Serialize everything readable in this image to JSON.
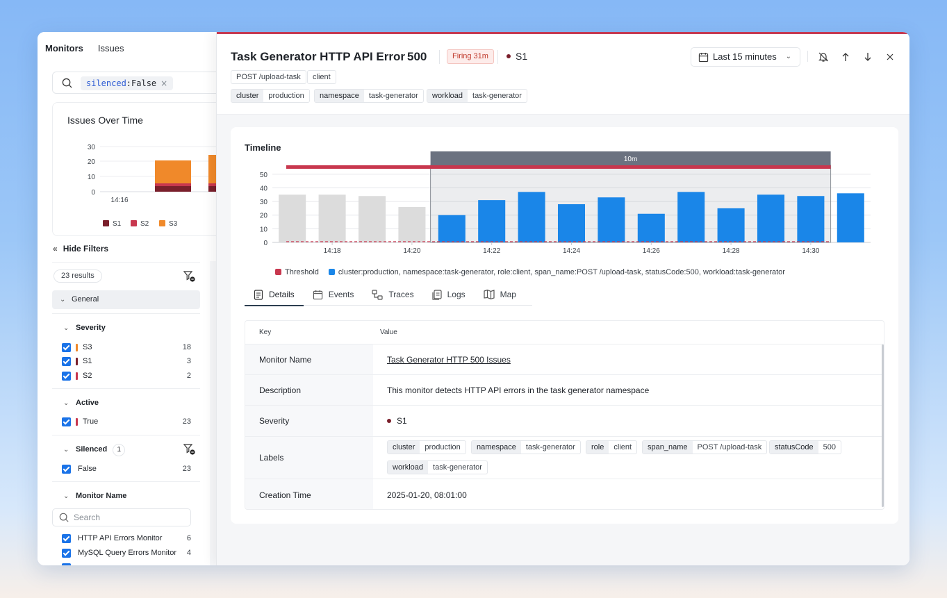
{
  "colors": {
    "s1": "#7a1f2b",
    "s2": "#c8374e",
    "s3": "#f0892a",
    "threshold": "#c8374e",
    "series": "#1a86e8",
    "accent": "#1a73e8"
  },
  "left": {
    "nav": [
      "Monitors",
      "Issues"
    ],
    "search": {
      "chip_key": "silenced",
      "chip_sep": ":",
      "chip_value": "False",
      "chip_close": "×"
    },
    "issues_chart": {
      "title": "Issues Over Time",
      "y_ticks": [
        "30",
        "20",
        "10",
        "0"
      ],
      "x_label": "14:16",
      "legend": [
        "S1",
        "S2",
        "S3"
      ]
    },
    "hide_filters": "Hide Filters",
    "results": "23 results",
    "general": "General",
    "severity": {
      "title": "Severity",
      "items": [
        {
          "label": "S3",
          "count": "18",
          "color": "#f0892a"
        },
        {
          "label": "S1",
          "count": "3",
          "color": "#7a1f2b"
        },
        {
          "label": "S2",
          "count": "2",
          "color": "#c8374e"
        }
      ]
    },
    "active": {
      "title": "Active",
      "items": [
        {
          "label": "True",
          "count": "23"
        }
      ]
    },
    "silenced": {
      "title": "Silenced",
      "badge": "1",
      "items": [
        {
          "label": "False",
          "count": "23"
        }
      ]
    },
    "monitor_name": {
      "title": "Monitor Name",
      "placeholder": "Search",
      "items": [
        {
          "label": "HTTP API Errors Monitor",
          "count": "6"
        },
        {
          "label": "MySQL Query Errors Monitor",
          "count": "4"
        }
      ]
    }
  },
  "issue": {
    "title": "Task Generator HTTP API Error",
    "code": "500",
    "status": "Firing 31m",
    "severity": "S1",
    "tags": [
      "POST /upload-task",
      "client"
    ],
    "labels_top": [
      {
        "key": "cluster",
        "value": "production"
      },
      {
        "key": "namespace",
        "value": "task-generator"
      },
      {
        "key": "workload",
        "value": "task-generator"
      }
    ],
    "time_range": "Last 15 minutes"
  },
  "timeline": {
    "title": "Timeline",
    "window_label": "10m",
    "legend_threshold": "Threshold",
    "legend_series": "cluster:production, namespace:task-generator, role:client, span_name:POST /upload-task, statusCode:500, workload:task-generator"
  },
  "chart_data": {
    "type": "bar",
    "title": "Timeline",
    "x": [
      "14:17",
      "14:18",
      "14:19",
      "14:20",
      "14:21",
      "14:22",
      "14:23",
      "14:24",
      "14:25",
      "14:26",
      "14:27",
      "14:28",
      "14:29",
      "14:30",
      "14:31"
    ],
    "x_tick_labels": [
      "14:18",
      "14:20",
      "14:22",
      "14:24",
      "14:26",
      "14:28",
      "14:30"
    ],
    "y_ticks": [
      0,
      10,
      20,
      30,
      40,
      50
    ],
    "ylim": [
      0,
      55
    ],
    "series": [
      {
        "name": "cluster:production, namespace:task-generator, role:client, span_name:POST /upload-task, statusCode:500, workload:task-generator",
        "values": [
          35,
          35,
          34,
          26,
          20,
          31,
          37,
          28,
          33,
          21,
          37,
          25,
          35,
          34,
          36
        ]
      }
    ],
    "threshold": 0,
    "highlight_window": {
      "from": "14:21",
      "to": "14:31",
      "label": "10m"
    },
    "grid": true,
    "legend_position": "bottom"
  },
  "tabs": [
    "Details",
    "Events",
    "Traces",
    "Logs",
    "Map"
  ],
  "details": {
    "col_key": "Key",
    "col_value": "Value",
    "monitor_name": {
      "key": "Monitor Name",
      "value": "Task Generator HTTP 500 Issues"
    },
    "description": {
      "key": "Description",
      "value": "This monitor detects HTTP API errors in the task generator namespace"
    },
    "severity": {
      "key": "Severity",
      "value": "S1"
    },
    "labels": {
      "key": "Labels",
      "items": [
        {
          "key": "cluster",
          "value": "production"
        },
        {
          "key": "namespace",
          "value": "task-generator"
        },
        {
          "key": "role",
          "value": "client"
        },
        {
          "key": "span_name",
          "value": "POST /upload-task"
        },
        {
          "key": "statusCode",
          "value": "500"
        },
        {
          "key": "workload",
          "value": "task-generator"
        }
      ]
    },
    "creation_time": {
      "key": "Creation Time",
      "value": "2025-01-20, 08:01:00"
    }
  }
}
